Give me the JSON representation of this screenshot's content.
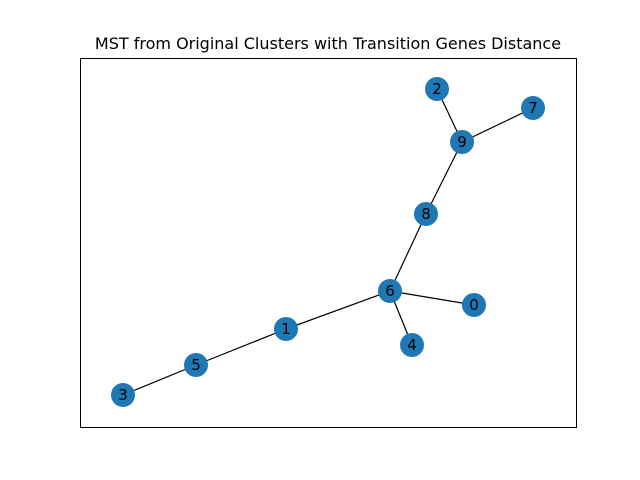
{
  "figure": {
    "title": "MST from Original Clusters with Transition Genes Distance"
  },
  "colors": {
    "node": "#1f77b4",
    "edge": "#000000",
    "background": "#ffffff"
  },
  "graph": {
    "nodes": [
      {
        "id": "0",
        "label": "0"
      },
      {
        "id": "1",
        "label": "1"
      },
      {
        "id": "2",
        "label": "2"
      },
      {
        "id": "3",
        "label": "3"
      },
      {
        "id": "4",
        "label": "4"
      },
      {
        "id": "5",
        "label": "5"
      },
      {
        "id": "6",
        "label": "6"
      },
      {
        "id": "7",
        "label": "7"
      },
      {
        "id": "8",
        "label": "8"
      },
      {
        "id": "9",
        "label": "9"
      }
    ],
    "edges": [
      {
        "source": "3",
        "target": "5"
      },
      {
        "source": "5",
        "target": "1"
      },
      {
        "source": "1",
        "target": "6"
      },
      {
        "source": "6",
        "target": "4"
      },
      {
        "source": "6",
        "target": "0"
      },
      {
        "source": "6",
        "target": "8"
      },
      {
        "source": "8",
        "target": "9"
      },
      {
        "source": "9",
        "target": "2"
      },
      {
        "source": "9",
        "target": "7"
      }
    ]
  }
}
